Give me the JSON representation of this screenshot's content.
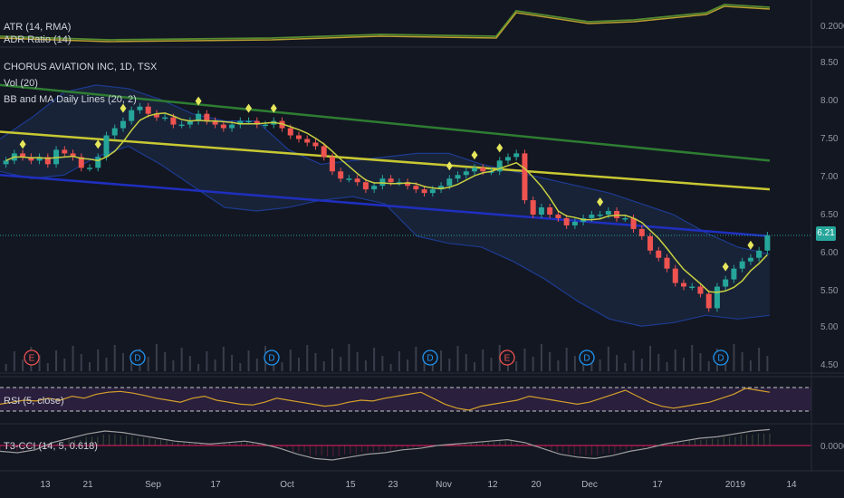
{
  "colors": {
    "background": "#131722",
    "up_candle": "#26a69a",
    "down_candle": "#ef5350",
    "bb_band": "#1d3b8f",
    "ma_green": "#2e7d32",
    "ma_yellow": "#c8c832",
    "ma_blue": "#1f2fbf",
    "signal_diamond": "#e6e65c",
    "rsi_line": "#d4a02a",
    "cci_line": "#9e9e9e",
    "cci_zero": "#e91e63"
  },
  "panes": {
    "atr": {
      "legend": [
        "ATR (14, RMA)",
        "ADR Ratio (14)"
      ],
      "ticks": [
        "0.2000"
      ]
    },
    "main": {
      "legend": [
        "CHORUS AVIATION INC, 1D, TSX",
        "Vol (20)",
        "BB and MA Daily Lines (20, 2)"
      ],
      "ticks": [
        "8.50",
        "8.00",
        "7.50",
        "7.00",
        "6.50",
        "6.00",
        "5.50",
        "5.00",
        "4.50"
      ],
      "last_price": "6.21"
    },
    "rsi": {
      "legend": "RSI (5, close)"
    },
    "cci": {
      "legend": "T3-CCI (14, 5, 0.618)",
      "ticks": [
        "0.0000"
      ]
    }
  },
  "event_markers": [
    {
      "type": "earnings",
      "letter": "E",
      "date": "Aug 8"
    },
    {
      "type": "dividend",
      "letter": "D",
      "date": "Sep 1"
    },
    {
      "type": "dividend",
      "letter": "D",
      "date": "Oct 1"
    },
    {
      "type": "dividend",
      "letter": "D",
      "date": "Nov 1"
    },
    {
      "type": "earnings",
      "letter": "E",
      "date": "Nov 14"
    },
    {
      "type": "dividend",
      "letter": "D",
      "date": "Dec 3"
    },
    {
      "type": "dividend",
      "letter": "D",
      "date": "Jan 2"
    }
  ],
  "x_axis": {
    "ticks": [
      "13",
      "21",
      "Sep",
      "17",
      "Oct",
      "15",
      "23",
      "Nov",
      "12",
      "20",
      "Dec",
      "17",
      "2019",
      "14"
    ]
  },
  "chart_data": {
    "type": "candlestick",
    "title": "CHORUS AVIATION INC, 1D, TSX",
    "ylim": [
      4.4,
      8.6
    ],
    "start_date": "2018-08-01",
    "end_date": "2019-01-08",
    "close": [
      7.25,
      7.35,
      7.3,
      7.25,
      7.3,
      7.2,
      7.4,
      7.35,
      7.3,
      7.15,
      7.15,
      7.3,
      7.6,
      7.7,
      7.8,
      7.95,
      8.0,
      7.9,
      7.85,
      7.85,
      7.75,
      7.75,
      7.8,
      7.9,
      7.8,
      7.75,
      7.7,
      7.75,
      7.8,
      7.8,
      7.75,
      7.75,
      7.8,
      7.7,
      7.6,
      7.55,
      7.5,
      7.45,
      7.3,
      7.1,
      7.0,
      7.0,
      6.95,
      6.85,
      6.9,
      7.0,
      6.95,
      6.95,
      6.9,
      6.85,
      6.8,
      6.85,
      6.9,
      7.0,
      7.05,
      7.1,
      7.15,
      7.1,
      7.1,
      7.25,
      7.3,
      7.35,
      6.7,
      6.5,
      6.6,
      6.5,
      6.45,
      6.35,
      6.4,
      6.45,
      6.5,
      6.5,
      6.55,
      6.45,
      6.45,
      6.3,
      6.2,
      6.0,
      5.9,
      5.75,
      5.55,
      5.5,
      5.5,
      5.4,
      5.2,
      5.5,
      5.6,
      5.75,
      5.85,
      5.9,
      6.0,
      6.21
    ],
    "series": [
      {
        "name": "Upper BB",
        "values": [
          7.55,
          7.85,
          8.2,
          8.3,
          8.25,
          8.1,
          7.9,
          7.8,
          7.8,
          7.4,
          7.2,
          7.25,
          7.3,
          7.35,
          7.35,
          7.2,
          7.1,
          7.0,
          6.9,
          6.8,
          6.65,
          6.5,
          6.25,
          6.05,
          5.95
        ]
      },
      {
        "name": "Lower BB",
        "values": [
          7.1,
          7.0,
          7.05,
          7.3,
          7.45,
          7.2,
          6.9,
          6.6,
          6.55,
          6.6,
          6.7,
          6.75,
          6.65,
          6.2,
          6.1,
          6.05,
          5.85,
          5.6,
          5.3,
          5.05,
          4.95,
          5.0,
          5.1,
          5.05,
          5.1
        ]
      },
      {
        "name": "Long MA (green)",
        "values": [
          8.3,
          7.25
        ]
      },
      {
        "name": "Long MA (yellow)",
        "values": [
          7.65,
          6.85
        ]
      },
      {
        "name": "Long MA (blue)",
        "values": [
          7.05,
          6.2
        ]
      }
    ],
    "rsi": [
      40,
      45,
      50,
      48,
      55,
      50,
      60,
      55,
      65,
      70,
      72,
      68,
      62,
      55,
      50,
      45,
      55,
      60,
      50,
      45,
      40,
      38,
      45,
      55,
      50,
      45,
      40,
      35,
      38,
      45,
      50,
      48,
      55,
      60,
      65,
      70,
      55,
      40,
      30,
      25,
      35,
      40,
      45,
      50,
      60,
      55,
      50,
      45,
      40,
      45,
      55,
      65,
      75,
      60,
      45,
      35,
      30,
      35,
      40,
      45,
      55,
      65,
      80,
      75,
      70
    ],
    "cci": [
      -40,
      -50,
      -30,
      20,
      50,
      80,
      100,
      90,
      70,
      50,
      30,
      20,
      10,
      20,
      30,
      10,
      -20,
      -60,
      -90,
      -100,
      -80,
      -60,
      -50,
      -30,
      -20,
      0,
      10,
      20,
      30,
      40,
      20,
      -20,
      -60,
      -80,
      -90,
      -70,
      -40,
      -20,
      10,
      30,
      50,
      60,
      80,
      100,
      110
    ]
  }
}
